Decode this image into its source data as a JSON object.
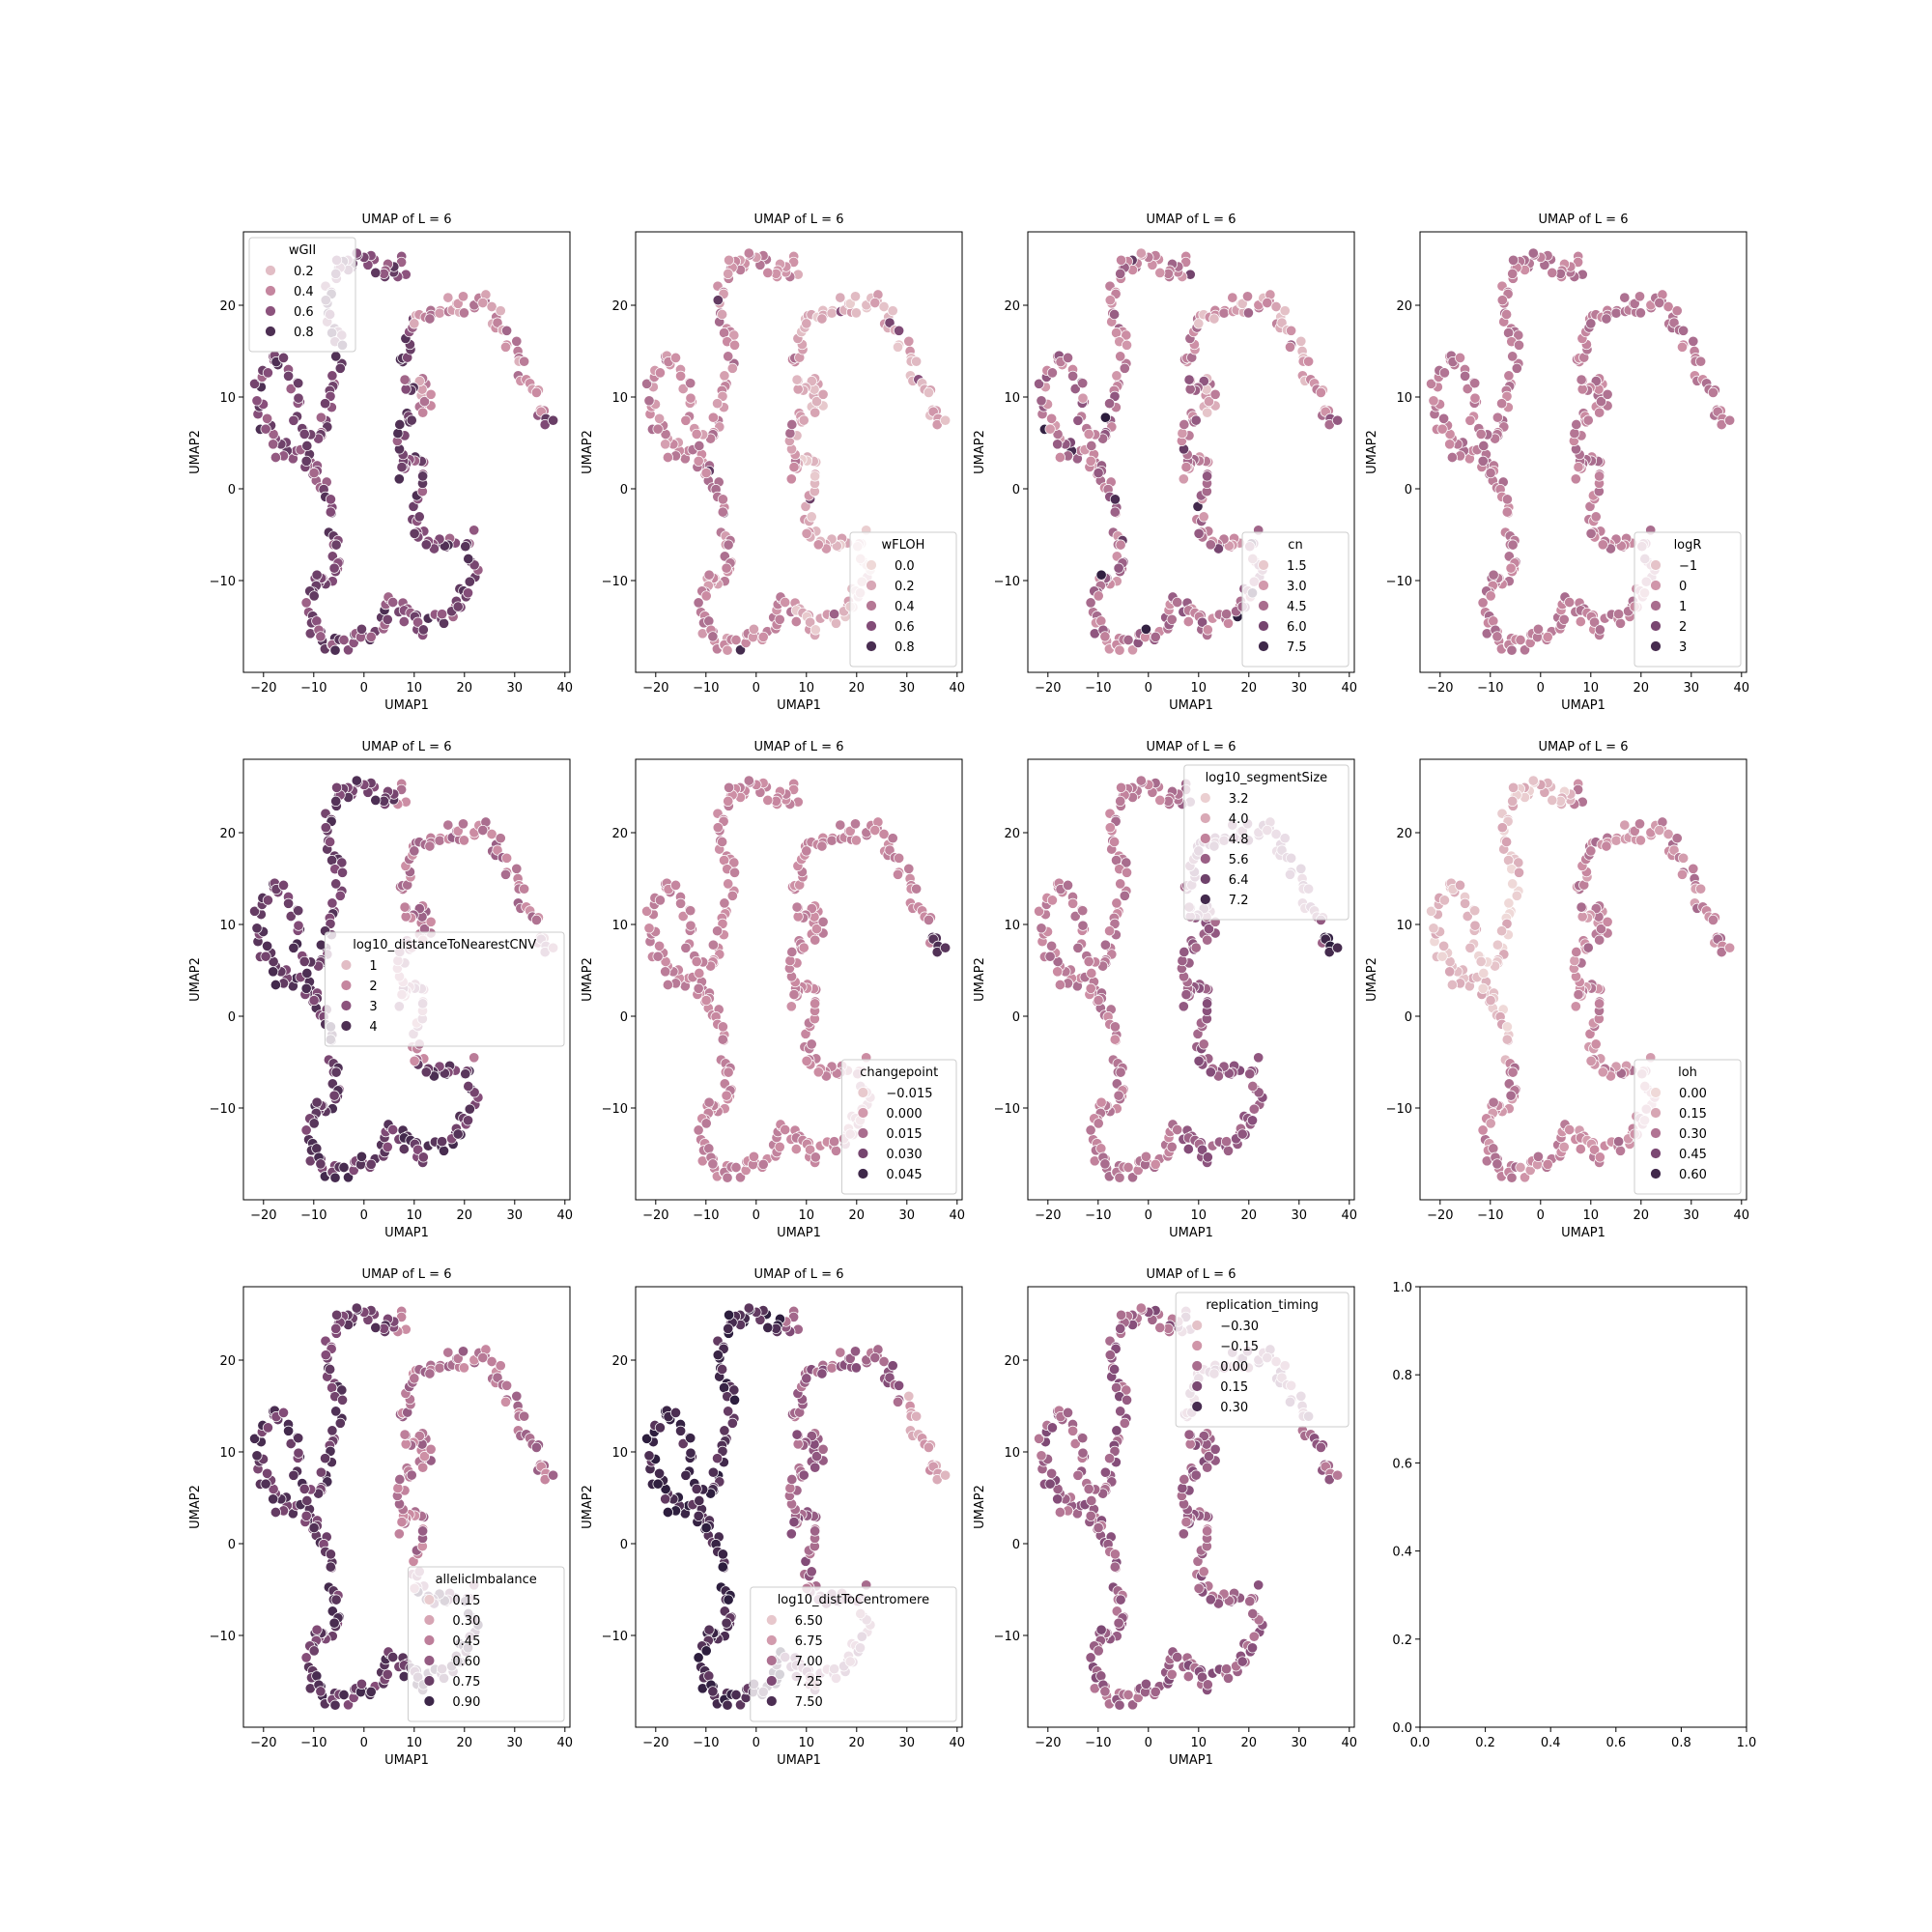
{
  "figure": {
    "layout": "3x4 grid of UMAP scatter panels",
    "point_color_low": "#efd9d8",
    "point_color_high": "#2d1e3e",
    "point_edge_color": "#ffffff"
  },
  "chart_data": [
    {
      "type": "scatter",
      "title": "UMAP of L = 6",
      "xlabel": "UMAP1",
      "ylabel": "UMAP2",
      "xlim": [
        -24,
        41
      ],
      "ylim": [
        -20,
        28
      ],
      "xticks": [
        -20,
        -10,
        0,
        10,
        20,
        30,
        40
      ],
      "yticks": [
        -10,
        0,
        10,
        20
      ],
      "xticklabels": [
        "−20",
        "−10",
        "0",
        "10",
        "20",
        "30",
        "40"
      ],
      "yticklabels": [
        "−10",
        "0",
        "10",
        "20"
      ],
      "hue": "wGII",
      "legend": {
        "title": "wGII",
        "location": "upper left",
        "labels": [
          "0.2",
          "0.4",
          "0.6",
          "0.8"
        ],
        "levels": [
          0.2,
          0.4,
          0.6,
          0.8
        ],
        "range": [
          0.1,
          0.9
        ]
      },
      "color_pattern": "wgii",
      "seed": 11
    },
    {
      "type": "scatter",
      "title": "UMAP of L = 6",
      "xlabel": "UMAP1",
      "ylabel": "UMAP2",
      "xlim": [
        -24,
        41
      ],
      "ylim": [
        -20,
        28
      ],
      "xticks": [
        -20,
        -10,
        0,
        10,
        20,
        30,
        40
      ],
      "yticks": [
        -10,
        0,
        10,
        20
      ],
      "xticklabels": [
        "−20",
        "−10",
        "0",
        "10",
        "20",
        "30",
        "40"
      ],
      "yticklabels": [
        "−10",
        "0",
        "10",
        "20"
      ],
      "hue": "wFLOH",
      "legend": {
        "title": "wFLOH",
        "location": "lower right",
        "labels": [
          "0.0",
          "0.2",
          "0.4",
          "0.6",
          "0.8"
        ],
        "levels": [
          0.0,
          0.2,
          0.4,
          0.6,
          0.8
        ],
        "range": [
          0.0,
          0.9
        ]
      },
      "color_pattern": "light_right",
      "seed": 23
    },
    {
      "type": "scatter",
      "title": "UMAP of L = 6",
      "xlabel": "UMAP1",
      "ylabel": "UMAP2",
      "xlim": [
        -24,
        41
      ],
      "ylim": [
        -20,
        28
      ],
      "xticks": [
        -20,
        -10,
        0,
        10,
        20,
        30,
        40
      ],
      "yticks": [
        -10,
        0,
        10,
        20
      ],
      "xticklabels": [
        "−20",
        "−10",
        "0",
        "10",
        "20",
        "30",
        "40"
      ],
      "yticklabels": [
        "−10",
        "0",
        "10",
        "20"
      ],
      "hue": "cn",
      "legend": {
        "title": "cn",
        "location": "lower right",
        "labels": [
          "1.5",
          "3.0",
          "4.5",
          "6.0",
          "7.5"
        ],
        "levels": [
          1.5,
          3.0,
          4.5,
          6.0,
          7.5
        ],
        "range": [
          1.0,
          8.0
        ]
      },
      "color_pattern": "cn",
      "seed": 37
    },
    {
      "type": "scatter",
      "title": "UMAP of L = 6",
      "xlabel": "UMAP1",
      "ylabel": "UMAP2",
      "xlim": [
        -24,
        41
      ],
      "ylim": [
        -20,
        28
      ],
      "xticks": [
        -20,
        -10,
        0,
        10,
        20,
        30,
        40
      ],
      "yticks": [
        -10,
        0,
        10,
        20
      ],
      "xticklabels": [
        "−20",
        "−10",
        "0",
        "10",
        "20",
        "30",
        "40"
      ],
      "yticklabels": [
        "−10",
        "0",
        "10",
        "20"
      ],
      "hue": "logR",
      "legend": {
        "title": "logR",
        "location": "lower right",
        "labels": [
          "−1",
          "0",
          "1",
          "2",
          "3"
        ],
        "levels": [
          -1,
          0,
          1,
          2,
          3
        ],
        "range": [
          -1.5,
          3.5
        ]
      },
      "color_pattern": "uniform",
      "seed": 41
    },
    {
      "type": "scatter",
      "title": "UMAP of L = 6",
      "xlabel": "UMAP1",
      "ylabel": "UMAP2",
      "xlim": [
        -24,
        41
      ],
      "ylim": [
        -20,
        28
      ],
      "xticks": [
        -20,
        -10,
        0,
        10,
        20,
        30,
        40
      ],
      "yticks": [
        -10,
        0,
        10,
        20
      ],
      "xticklabels": [
        "−20",
        "−10",
        "0",
        "10",
        "20",
        "30",
        "40"
      ],
      "yticklabels": [
        "−10",
        "0",
        "10",
        "20"
      ],
      "hue": "log10_distanceToNearestCNV",
      "legend": {
        "title": "log10_distanceToNearestCNV",
        "location": "center right",
        "labels": [
          "1",
          "2",
          "3",
          "4"
        ],
        "levels": [
          1,
          2,
          3,
          4
        ],
        "range": [
          0.5,
          4.5
        ]
      },
      "color_pattern": "dark_left",
      "seed": 53
    },
    {
      "type": "scatter",
      "title": "UMAP of L = 6",
      "xlabel": "UMAP1",
      "ylabel": "UMAP2",
      "xlim": [
        -24,
        41
      ],
      "ylim": [
        -20,
        28
      ],
      "xticks": [
        -20,
        -10,
        0,
        10,
        20,
        30,
        40
      ],
      "yticks": [
        -10,
        0,
        10,
        20
      ],
      "xticklabels": [
        "−20",
        "−10",
        "0",
        "10",
        "20",
        "30",
        "40"
      ],
      "yticklabels": [
        "−10",
        "0",
        "10",
        "20"
      ],
      "hue": "changepoint",
      "legend": {
        "title": "changepoint",
        "location": "lower right",
        "labels": [
          "−0.015",
          "0.000",
          "0.015",
          "0.030",
          "0.045"
        ],
        "levels": [
          -0.015,
          0.0,
          0.015,
          0.03,
          0.045
        ],
        "range": [
          -0.02,
          0.05
        ]
      },
      "color_pattern": "changepoint",
      "seed": 67
    },
    {
      "type": "scatter",
      "title": "UMAP of L = 6",
      "xlabel": "UMAP1",
      "ylabel": "UMAP2",
      "xlim": [
        -24,
        41
      ],
      "ylim": [
        -20,
        28
      ],
      "xticks": [
        -20,
        -10,
        0,
        10,
        20,
        30,
        40
      ],
      "yticks": [
        -10,
        0,
        10,
        20
      ],
      "xticklabels": [
        "−20",
        "−10",
        "0",
        "10",
        "20",
        "30",
        "40"
      ],
      "yticklabels": [
        "−10",
        "0",
        "10",
        "20"
      ],
      "hue": "log10_segmentSize",
      "legend": {
        "title": "log10_segmentSize",
        "location": "upper right",
        "labels": [
          "3.2",
          "4.0",
          "4.8",
          "5.6",
          "6.4",
          "7.2"
        ],
        "levels": [
          3.2,
          4.0,
          4.8,
          5.6,
          6.4,
          7.2
        ],
        "range": [
          3.0,
          7.6
        ]
      },
      "color_pattern": "segsize",
      "seed": 71
    },
    {
      "type": "scatter",
      "title": "UMAP of L = 6",
      "xlabel": "UMAP1",
      "ylabel": "UMAP2",
      "xlim": [
        -24,
        41
      ],
      "ylim": [
        -20,
        28
      ],
      "xticks": [
        -20,
        -10,
        0,
        10,
        20,
        30,
        40
      ],
      "yticks": [
        -10,
        0,
        10,
        20
      ],
      "xticklabels": [
        "−20",
        "−10",
        "0",
        "10",
        "20",
        "30",
        "40"
      ],
      "yticklabels": [
        "−10",
        "0",
        "10",
        "20"
      ],
      "hue": "loh",
      "legend": {
        "title": "loh",
        "location": "lower right",
        "labels": [
          "0.00",
          "0.15",
          "0.30",
          "0.45",
          "0.60"
        ],
        "levels": [
          0.0,
          0.15,
          0.3,
          0.45,
          0.6
        ],
        "range": [
          0.0,
          0.65
        ]
      },
      "color_pattern": "loh",
      "seed": 83
    },
    {
      "type": "scatter",
      "title": "UMAP of L = 6",
      "xlabel": "UMAP1",
      "ylabel": "UMAP2",
      "xlim": [
        -24,
        41
      ],
      "ylim": [
        -20,
        28
      ],
      "xticks": [
        -20,
        -10,
        0,
        10,
        20,
        30,
        40
      ],
      "yticks": [
        -10,
        0,
        10,
        20
      ],
      "xticklabels": [
        "−20",
        "−10",
        "0",
        "10",
        "20",
        "30",
        "40"
      ],
      "yticklabels": [
        "−10",
        "0",
        "10",
        "20"
      ],
      "hue": "allelicImbalance",
      "legend": {
        "title": "allelicImbalance",
        "location": "lower right",
        "labels": [
          "0.15",
          "0.30",
          "0.45",
          "0.60",
          "0.75",
          "0.90"
        ],
        "levels": [
          0.15,
          0.3,
          0.45,
          0.6,
          0.75,
          0.9
        ],
        "range": [
          0.1,
          0.95
        ]
      },
      "color_pattern": "dark_left",
      "seed": 97
    },
    {
      "type": "scatter",
      "title": "UMAP of L = 6",
      "xlabel": "UMAP1",
      "ylabel": "UMAP2",
      "xlim": [
        -24,
        41
      ],
      "ylim": [
        -20,
        28
      ],
      "xticks": [
        -20,
        -10,
        0,
        10,
        20,
        30,
        40
      ],
      "yticks": [
        -10,
        0,
        10,
        20
      ],
      "xticklabels": [
        "−20",
        "−10",
        "0",
        "10",
        "20",
        "30",
        "40"
      ],
      "yticklabels": [
        "−10",
        "0",
        "10",
        "20"
      ],
      "hue": "log10_distToCentromere",
      "legend": {
        "title": "log10_distToCentromere",
        "location": "lower right",
        "labels": [
          "6.50",
          "6.75",
          "7.00",
          "7.25",
          "7.50"
        ],
        "levels": [
          6.5,
          6.75,
          7.0,
          7.25,
          7.5
        ],
        "range": [
          6.4,
          7.65
        ]
      },
      "color_pattern": "dark_left_strong",
      "seed": 101
    },
    {
      "type": "scatter",
      "title": "UMAP of L = 6",
      "xlabel": "UMAP1",
      "ylabel": "UMAP2",
      "xlim": [
        -24,
        41
      ],
      "ylim": [
        -20,
        28
      ],
      "xticks": [
        -20,
        -10,
        0,
        10,
        20,
        30,
        40
      ],
      "yticks": [
        -10,
        0,
        10,
        20
      ],
      "xticklabels": [
        "−20",
        "−10",
        "0",
        "10",
        "20",
        "30",
        "40"
      ],
      "yticklabels": [
        "−10",
        "0",
        "10",
        "20"
      ],
      "hue": "replication_timing",
      "legend": {
        "title": "replication_timing",
        "location": "upper right",
        "labels": [
          "−0.30",
          "−0.15",
          "0.00",
          "0.15",
          "0.30"
        ],
        "levels": [
          -0.3,
          -0.15,
          0.0,
          0.15,
          0.3
        ],
        "range": [
          -0.38,
          0.38
        ]
      },
      "color_pattern": "reptiming",
      "seed": 113
    },
    {
      "type": "empty",
      "title": "",
      "xlabel": "",
      "ylabel": "",
      "xlim": [
        0,
        1
      ],
      "ylim": [
        0,
        1
      ],
      "xticks": [
        0.0,
        0.2,
        0.4,
        0.6,
        0.8,
        1.0
      ],
      "yticks": [
        0.0,
        0.2,
        0.4,
        0.6,
        0.8,
        1.0
      ],
      "xticklabels": [
        "0.0",
        "0.2",
        "0.4",
        "0.6",
        "0.8",
        "1.0"
      ],
      "yticklabels": [
        "0.0",
        "0.2",
        "0.4",
        "0.6",
        "0.8",
        "1.0"
      ]
    }
  ],
  "umap_path": [
    [
      8,
      24.5
    ],
    [
      6,
      23.5
    ],
    [
      3,
      24.2
    ],
    [
      0,
      24.8
    ],
    [
      -3,
      24.5
    ],
    [
      -6,
      24
    ],
    [
      -7,
      22
    ],
    [
      -7,
      19
    ],
    [
      -5.5,
      16.5
    ],
    [
      -5,
      13
    ],
    [
      -6.5,
      10
    ],
    [
      -8,
      7
    ],
    [
      -10,
      5
    ],
    [
      -12,
      3
    ],
    [
      -15,
      3.5
    ],
    [
      -18,
      5
    ],
    [
      -20.5,
      7.5
    ],
    [
      -21,
      11
    ],
    [
      -19.5,
      13.5
    ],
    [
      -16.5,
      14
    ],
    [
      -14,
      12
    ],
    [
      -13.5,
      9
    ],
    [
      -12.5,
      6
    ],
    [
      -10.5,
      3.5
    ],
    [
      -9,
      1
    ],
    [
      -7,
      -2
    ],
    [
      -6,
      -5
    ],
    [
      -5,
      -8.5
    ],
    [
      -7.5,
      -9.5
    ],
    [
      -10,
      -9
    ],
    [
      -11,
      -11.5
    ],
    [
      -10.5,
      -15
    ],
    [
      -8,
      -16.5
    ],
    [
      -5,
      -17
    ],
    [
      -2,
      -16.5
    ],
    [
      1,
      -16
    ],
    [
      3,
      -14.5
    ],
    [
      5,
      -12.5
    ],
    [
      7.5,
      -12.5
    ],
    [
      9,
      -14.5
    ],
    [
      12,
      -15
    ],
    [
      15,
      -14.5
    ],
    [
      18,
      -13.5
    ],
    [
      21,
      -11
    ],
    [
      22,
      -8
    ],
    [
      21,
      -5.5
    ],
    [
      18,
      -6
    ],
    [
      14,
      -6.5
    ],
    [
      11.5,
      -5
    ],
    [
      10,
      -3
    ],
    [
      10.5,
      -1
    ],
    [
      12,
      1
    ],
    [
      12,
      3
    ],
    [
      9,
      2.5
    ],
    [
      7,
      1.5
    ],
    [
      7,
      4
    ],
    [
      8,
      6.5
    ],
    [
      10,
      8
    ],
    [
      12,
      9
    ],
    [
      13,
      11
    ],
    [
      10,
      11.5
    ],
    [
      8,
      12
    ],
    [
      8,
      14.5
    ],
    [
      9,
      17
    ],
    [
      11,
      19
    ],
    [
      14,
      19.5
    ],
    [
      17,
      19.8
    ],
    [
      20,
      20
    ],
    [
      24,
      20.5
    ],
    [
      27,
      18
    ],
    [
      30,
      15
    ],
    [
      32.5,
      12
    ],
    [
      35,
      9
    ],
    [
      38,
      7
    ]
  ]
}
